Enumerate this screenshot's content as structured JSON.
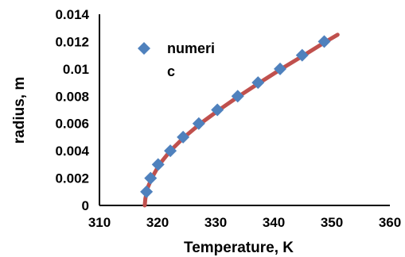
{
  "chart_data": {
    "type": "scatter",
    "xlabel": "Temperature, K",
    "ylabel": "radius, m",
    "xlim": [
      310,
      360
    ],
    "ylim": [
      0,
      0.014
    ],
    "x_ticks": [
      "310",
      "320",
      "330",
      "340",
      "350",
      "360"
    ],
    "y_ticks": [
      "0",
      "0.002",
      "0.004",
      "0.006",
      "0.008",
      "0.01",
      "0.012",
      "0.014"
    ],
    "grid": false,
    "legend_position": "top-left",
    "legend_lines": [
      "numeri",
      "c"
    ],
    "series": [
      {
        "name": "numeric",
        "kind": "markers",
        "marker": "diamond",
        "color": "#4F81BD",
        "x": [
          318.1,
          318.8,
          320.1,
          322.2,
          324.4,
          327.1,
          330.3,
          333.8,
          337.3,
          341.1,
          344.9,
          348.7
        ],
        "y": [
          0.001,
          0.002,
          0.003,
          0.004,
          0.005,
          0.006,
          0.007,
          0.008,
          0.009,
          0.01,
          0.011,
          0.012
        ]
      },
      {
        "kind": "line",
        "color": "#C0504D",
        "x": [
          317.8,
          317.9,
          318.3,
          319.0,
          320.3,
          322.2,
          324.6,
          327.4,
          330.6,
          334.0,
          337.6,
          341.3,
          345.2,
          349.0,
          351.0
        ],
        "y": [
          0.0,
          0.0005,
          0.0013,
          0.002,
          0.003,
          0.004,
          0.005,
          0.006,
          0.007,
          0.008,
          0.009,
          0.01,
          0.011,
          0.012,
          0.0125
        ]
      }
    ]
  }
}
